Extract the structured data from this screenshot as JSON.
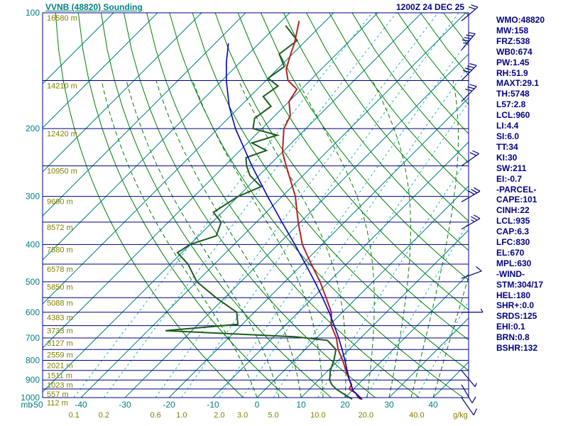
{
  "header": {
    "title": "VVNB (48820) Sounding",
    "datetime": "1200Z 24 DEC 25"
  },
  "colors": {
    "navy": "#000080",
    "teal": "#008080",
    "olive": "#808000",
    "temperature_curve": "#b22222",
    "dewpoint_curve": "#1d5c1d",
    "parcel_curve": "#0000c0",
    "dry_adiabat": "#008000",
    "moist_adiabat": "#008000",
    "mixing_ratio": "#20b2b2",
    "isotherm": "#008080",
    "isobar": "#000080",
    "wind_barb": "#000080"
  },
  "stats": {
    "items": [
      "WMO:48820",
      "MW:158",
      "FRZ:538",
      "WB0:674",
      "PW:1.45",
      "RH:51.9",
      "MAXT:29.1",
      "TH:5748",
      "L57:2.8",
      "LCL:960",
      "LI:4.4",
      "SI:6.0",
      "TT:34",
      "KI:30",
      "SW:211",
      "EI:-0.7",
      "-PARCEL-",
      "CAPE:101",
      "CINH:22",
      "LCL:935",
      "CAP:6.3",
      "LFC:830",
      "EL:670",
      "MPL:630",
      "-WIND-",
      "STM:304/17",
      "HEL:180",
      "SHR+:0.0",
      "SRDS:125",
      "EHI:0.1",
      "BRN:0.8",
      "BSHR:132"
    ]
  },
  "chart_data": {
    "type": "line",
    "chart_kind": "skew-t log-p sounding",
    "title": "VVNB (48820) Sounding",
    "valid_time": "1200Z 24 DEC 25",
    "units": {
      "pressure": "mb",
      "mixing_ratio": "g/kg",
      "temperature": "C"
    },
    "pressure_ticks_mb": [
      100,
      200,
      300,
      400,
      500,
      600,
      700,
      800,
      900,
      1000
    ],
    "temp_ticks_c": [
      -50,
      -40,
      -30,
      -20,
      -10,
      0,
      10,
      20,
      30,
      40
    ],
    "mixing_ratio_values": [
      0.1,
      0.2,
      0.6,
      1.0,
      2.0,
      3.0,
      5.0,
      10.0,
      20.0,
      40.0
    ],
    "mixing_ratio_labels": [
      "0.1",
      "0.2",
      "0.6",
      "1.0",
      "2.0",
      "3.0",
      "5.0",
      "10.0",
      "20.0",
      "40.0"
    ],
    "height_labels": [
      {
        "p": 100,
        "text": "16580 m"
      },
      {
        "p": 150,
        "text": "14210 m"
      },
      {
        "p": 200,
        "text": "12420 m"
      },
      {
        "p": 250,
        "text": "10950 m"
      },
      {
        "p": 300,
        "text": "9690 m"
      },
      {
        "p": 350,
        "text": "8572 m"
      },
      {
        "p": 400,
        "text": "7580 m"
      },
      {
        "p": 450,
        "text": "6578 m"
      },
      {
        "p": 500,
        "text": "5850 m"
      },
      {
        "p": 550,
        "text": "5088 m"
      },
      {
        "p": 600,
        "text": "4383 m"
      },
      {
        "p": 650,
        "text": "3733 m"
      },
      {
        "p": 700,
        "text": "3127 m"
      },
      {
        "p": 750,
        "text": "2559 m"
      },
      {
        "p": 800,
        "text": "2021 m"
      },
      {
        "p": 850,
        "text": "1511 m"
      },
      {
        "p": 900,
        "text": "1023 m"
      },
      {
        "p": 950,
        "text": "557 m"
      },
      {
        "p": 1000,
        "text": "112 m"
      }
    ],
    "isotherm_grid": {
      "min": -120,
      "max": 40,
      "step": 10
    },
    "dry_adiabats_theta_k": {
      "min": 270,
      "max": 450,
      "step": 10
    },
    "moist_adiabat_starts_c": [
      0,
      5,
      10,
      15,
      20,
      25,
      30,
      35,
      40
    ],
    "series": {
      "temperature": [
        [
          1010,
          24
        ],
        [
          1000,
          23
        ],
        [
          975,
          21.5
        ],
        [
          950,
          19
        ],
        [
          925,
          18.5
        ],
        [
          900,
          17
        ],
        [
          850,
          14
        ],
        [
          800,
          11
        ],
        [
          750,
          7.5
        ],
        [
          700,
          4.5
        ],
        [
          650,
          0.5
        ],
        [
          600,
          -2.5
        ],
        [
          550,
          -7
        ],
        [
          500,
          -12
        ],
        [
          450,
          -18
        ],
        [
          400,
          -24.5
        ],
        [
          350,
          -30.5
        ],
        [
          300,
          -37
        ],
        [
          250,
          -46
        ],
        [
          230,
          -50
        ],
        [
          200,
          -55
        ],
        [
          185,
          -56.5
        ],
        [
          170,
          -60
        ],
        [
          158,
          -61
        ],
        [
          150,
          -65
        ],
        [
          140,
          -68
        ],
        [
          130,
          -70
        ],
        [
          120,
          -72
        ],
        [
          105,
          -76
        ]
      ],
      "dewpoint": [
        [
          1010,
          22
        ],
        [
          1000,
          21
        ],
        [
          975,
          18.5
        ],
        [
          950,
          16
        ],
        [
          925,
          14
        ],
        [
          900,
          12.5
        ],
        [
          850,
          10.5
        ],
        [
          800,
          9
        ],
        [
          750,
          7
        ],
        [
          710,
          3
        ],
        [
          695,
          -5
        ],
        [
          670,
          -36
        ],
        [
          645,
          -21
        ],
        [
          600,
          -24
        ],
        [
          550,
          -32
        ],
        [
          500,
          -40
        ],
        [
          450,
          -46
        ],
        [
          420,
          -51
        ],
        [
          400,
          -50
        ],
        [
          380,
          -46
        ],
        [
          350,
          -48
        ],
        [
          330,
          -52
        ],
        [
          300,
          -50
        ],
        [
          283,
          -47
        ],
        [
          265,
          -52
        ],
        [
          250,
          -55
        ],
        [
          238,
          -57
        ],
        [
          228,
          -54
        ],
        [
          218,
          -59
        ],
        [
          208,
          -55
        ],
        [
          200,
          -62
        ],
        [
          188,
          -64
        ],
        [
          175,
          -63
        ],
        [
          165,
          -67
        ],
        [
          155,
          -66
        ],
        [
          148,
          -70
        ],
        [
          138,
          -69
        ],
        [
          128,
          -73
        ],
        [
          118,
          -72
        ],
        [
          108,
          -78
        ]
      ],
      "parcel": [
        [
          1012,
          24.3
        ],
        [
          1000,
          23.5
        ],
        [
          960,
          20.3
        ],
        [
          900,
          17
        ],
        [
          850,
          14.3
        ],
        [
          800,
          11.5
        ],
        [
          750,
          8.4
        ],
        [
          700,
          5
        ],
        [
          650,
          1.2
        ],
        [
          600,
          -3
        ],
        [
          550,
          -7.8
        ],
        [
          500,
          -13.2
        ],
        [
          450,
          -19.3
        ],
        [
          400,
          -26.2
        ],
        [
          350,
          -34.2
        ],
        [
          300,
          -43.3
        ],
        [
          250,
          -53.8
        ],
        [
          200,
          -66
        ],
        [
          175,
          -72.5
        ],
        [
          150,
          -79
        ],
        [
          135,
          -83
        ],
        [
          120,
          -87
        ]
      ]
    },
    "wind_barbs": [
      {
        "p": 105,
        "spd": 20,
        "dir": 50
      },
      {
        "p": 125,
        "spd": 45,
        "dir": 40
      },
      {
        "p": 150,
        "spd": 40,
        "dir": 45
      },
      {
        "p": 170,
        "spd": 30,
        "dir": 45
      },
      {
        "p": 250,
        "spd": 20,
        "dir": 55
      },
      {
        "p": 310,
        "spd": 30,
        "dir": 60
      },
      {
        "p": 365,
        "spd": 25,
        "dir": 60
      },
      {
        "p": 490,
        "spd": 10,
        "dir": 70
      },
      {
        "p": 600,
        "spd": 5,
        "dir": 90
      },
      {
        "p": 850,
        "spd": 5,
        "dir": 140
      },
      {
        "p": 925,
        "spd": 10,
        "dir": 150
      },
      {
        "p": 1000,
        "spd": 10,
        "dir": 145
      }
    ]
  }
}
